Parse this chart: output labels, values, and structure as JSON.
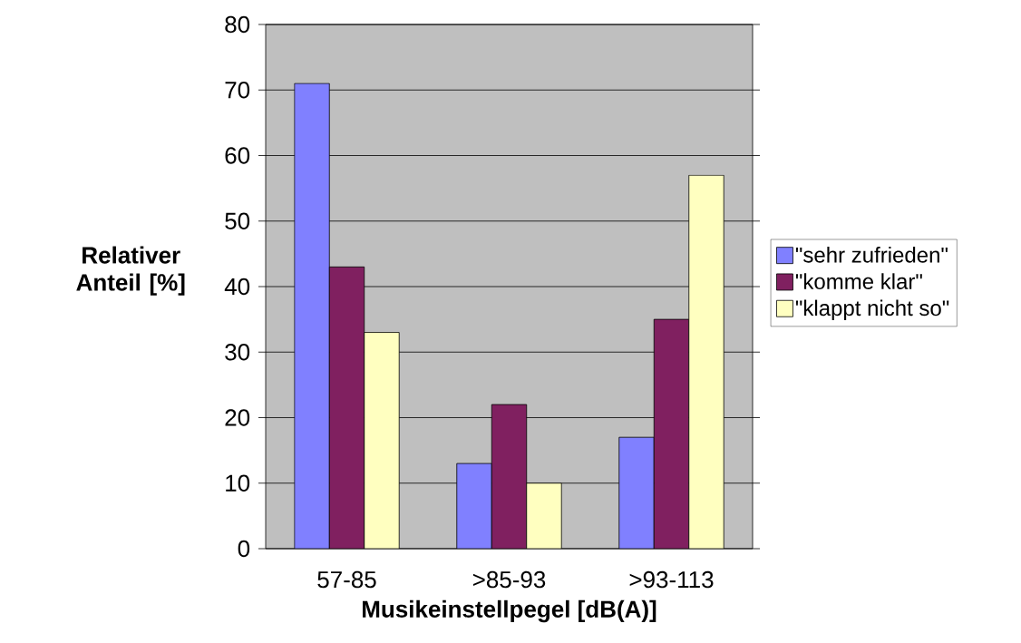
{
  "chart_data": {
    "type": "bar",
    "xlabel": "Musikeinstellpegel [dB(A)]",
    "ylabel": "Relativer Anteil [%]",
    "categories": [
      "57-85",
      ">85-93",
      ">93-113"
    ],
    "series": [
      {
        "name": "\"sehr zufrieden\"",
        "color": "#8080ff",
        "values": [
          71,
          13,
          17
        ]
      },
      {
        "name": "\"komme klar\"",
        "color": "#802060",
        "values": [
          43,
          22,
          35
        ]
      },
      {
        "name": "\"klappt nicht so\"",
        "color": "#ffffc0",
        "values": [
          33,
          10,
          57
        ]
      }
    ],
    "ylim": [
      0,
      80
    ],
    "yticks": [
      0,
      10,
      20,
      30,
      40,
      50,
      60,
      70,
      80
    ],
    "grid": "y",
    "legend": "right"
  }
}
